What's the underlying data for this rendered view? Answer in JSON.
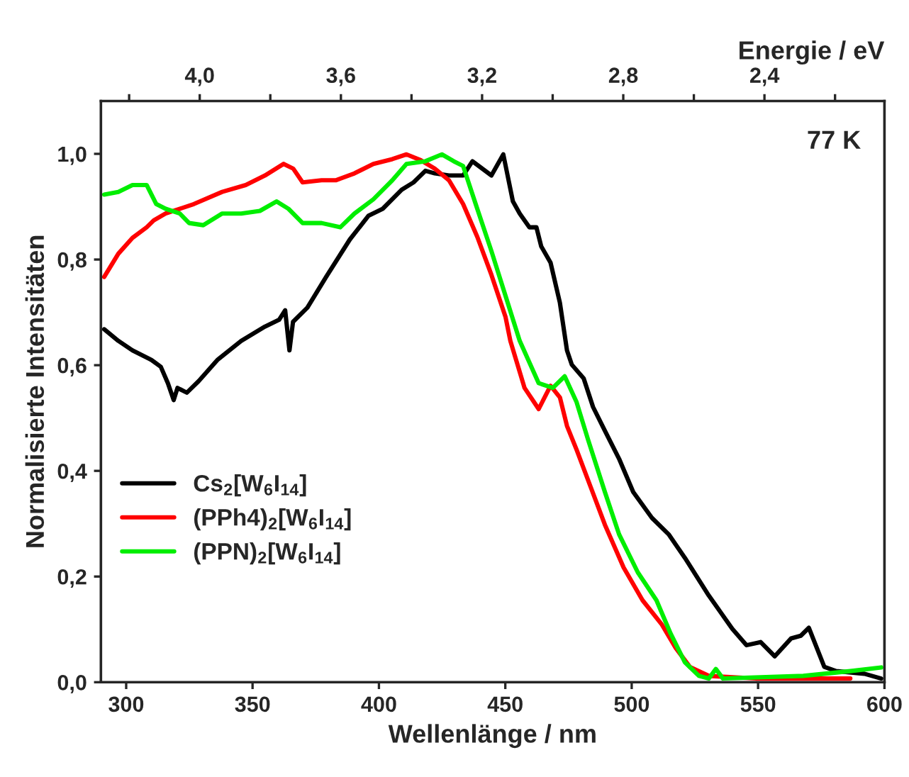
{
  "chart_data": {
    "type": "line",
    "xlabel": "Wellenlänge / nm",
    "ylabel": "Normalisierte Intensitäten",
    "x2label": "Energie / eV",
    "xlim": [
      290,
      600
    ],
    "xticks": [
      300,
      350,
      400,
      450,
      500,
      550,
      600
    ],
    "ylim": [
      0,
      1.1
    ],
    "yticks": [
      {
        "value": 0,
        "label": "0,0"
      },
      {
        "value": 0.2,
        "label": "0,2"
      },
      {
        "value": 0.4,
        "label": "0,4"
      },
      {
        "value": 0.6,
        "label": "0,6"
      },
      {
        "value": 0.8,
        "label": "0,8"
      },
      {
        "value": 1.0,
        "label": "1,0"
      }
    ],
    "x2lim": [
      4.28,
      2.06
    ],
    "x2ticks": [
      {
        "value": 4.2,
        "label": null
      },
      {
        "value": 4.0,
        "label": "4,0"
      },
      {
        "value": 3.8,
        "label": null
      },
      {
        "value": 3.6,
        "label": "3,6"
      },
      {
        "value": 3.4,
        "label": null
      },
      {
        "value": 3.2,
        "label": "3,2"
      },
      {
        "value": 3.0,
        "label": null
      },
      {
        "value": 2.8,
        "label": "2,8"
      },
      {
        "value": 2.6,
        "label": null
      },
      {
        "value": 2.4,
        "label": "2,4"
      },
      {
        "value": 2.2,
        "label": null
      }
    ],
    "annotations": [
      "77 K"
    ],
    "legend": "left",
    "grid": false,
    "marker": "none",
    "line_style": "solid",
    "series": [
      {
        "name": "Cs$_{2}$[W$_{6}$I$_{14}$]",
        "color": "#000000",
        "x": [
          291.3,
          296.9,
          302.5,
          310,
          313.7,
          316.5,
          318.8,
          320.3,
          324,
          328.7,
          336.1,
          345.5,
          354.9,
          360.5,
          362.9,
          364.6,
          366,
          371.7,
          379.1,
          388.5,
          395.9,
          401.5,
          409,
          413.7,
          418.4,
          422.1,
          427.7,
          433.3,
          437,
          444.5,
          449.2,
          453,
          455.7,
          459.5,
          462.3,
          464.2,
          467.9,
          471.6,
          474.4,
          476.3,
          481,
          484.7,
          489.4,
          495,
          500.6,
          508,
          514.6,
          521.1,
          530.5,
          539.8,
          545.4,
          551,
          556.6,
          563.1,
          566.9,
          570.1,
          576.2,
          580.9,
          592.1,
          598.7
        ],
        "values": [
          0.668,
          0.646,
          0.628,
          0.61,
          0.597,
          0.566,
          0.534,
          0.557,
          0.548,
          0.57,
          0.61,
          0.646,
          0.673,
          0.686,
          0.704,
          0.628,
          0.682,
          0.709,
          0.767,
          0.838,
          0.883,
          0.896,
          0.932,
          0.946,
          0.968,
          0.963,
          0.959,
          0.959,
          0.986,
          0.959,
          0.999,
          0.91,
          0.887,
          0.861,
          0.861,
          0.825,
          0.794,
          0.718,
          0.628,
          0.601,
          0.575,
          0.521,
          0.476,
          0.423,
          0.36,
          0.311,
          0.28,
          0.235,
          0.164,
          0.101,
          0.07,
          0.076,
          0.049,
          0.083,
          0.088,
          0.103,
          0.029,
          0.021,
          0.016,
          0.007
        ]
      },
      {
        "name": "(PPh4)$_{2}$[W$_{6}$I$_{14}$]",
        "color": "#ff0000",
        "x": [
          291.3,
          296.9,
          302.5,
          308.1,
          310.9,
          315.6,
          326.8,
          338,
          347.3,
          354.9,
          362.3,
          366.1,
          369.8,
          377.3,
          382.9,
          390.3,
          397.8,
          405.3,
          410.9,
          416.5,
          422.1,
          427.7,
          433.3,
          438.9,
          444.5,
          450.1,
          452,
          457.6,
          463.2,
          467.9,
          471.6,
          474.4,
          478.2,
          483.8,
          489.4,
          496.8,
          504.3,
          511.8,
          517.4,
          523,
          530.5,
          549.1,
          586.5
        ],
        "values": [
          0.767,
          0.811,
          0.841,
          0.861,
          0.874,
          0.887,
          0.905,
          0.928,
          0.941,
          0.959,
          0.981,
          0.972,
          0.946,
          0.95,
          0.95,
          0.963,
          0.981,
          0.99,
          0.999,
          0.988,
          0.972,
          0.95,
          0.905,
          0.843,
          0.771,
          0.691,
          0.646,
          0.557,
          0.517,
          0.561,
          0.539,
          0.485,
          0.44,
          0.369,
          0.298,
          0.217,
          0.155,
          0.11,
          0.065,
          0.029,
          0.012,
          0.007,
          0.007
        ]
      },
      {
        "name": "(PPN)$_{2}$[W$_{6}$I$_{14}$]",
        "color": "#00ee00",
        "x": [
          291.3,
          296.9,
          302.5,
          308.1,
          311.9,
          315.6,
          321.2,
          324.9,
          330.5,
          338,
          345.5,
          352.9,
          359.5,
          364.2,
          369.8,
          377.3,
          384.7,
          390.3,
          397.8,
          405.3,
          410.9,
          418.4,
          424.9,
          429.6,
          433.3,
          438.9,
          444.5,
          450.1,
          455.7,
          463.2,
          468.8,
          473.5,
          478.2,
          482.8,
          489.4,
          495,
          502.4,
          509.8,
          515.4,
          521,
          526.6,
          530.5,
          533.3,
          536.1,
          567.9,
          586.5,
          598.7
        ],
        "values": [
          0.923,
          0.928,
          0.941,
          0.941,
          0.905,
          0.896,
          0.887,
          0.869,
          0.865,
          0.887,
          0.887,
          0.892,
          0.91,
          0.896,
          0.869,
          0.869,
          0.861,
          0.887,
          0.914,
          0.95,
          0.981,
          0.986,
          0.999,
          0.986,
          0.977,
          0.896,
          0.816,
          0.731,
          0.646,
          0.566,
          0.557,
          0.579,
          0.53,
          0.458,
          0.36,
          0.28,
          0.208,
          0.155,
          0.092,
          0.038,
          0.012,
          0.007,
          0.025,
          0.007,
          0.012,
          0.021,
          0.028
        ]
      }
    ]
  }
}
